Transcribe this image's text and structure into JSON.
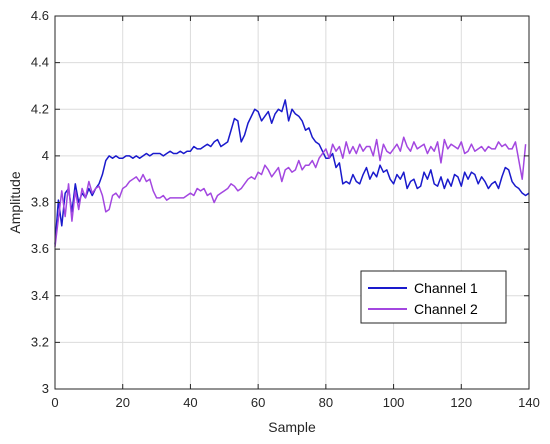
{
  "chart_data": {
    "type": "line",
    "xlabel": "Sample",
    "ylabel": "Amplitude",
    "xlim": [
      0,
      140
    ],
    "ylim": [
      3,
      4.6
    ],
    "xticks": [
      0,
      20,
      40,
      60,
      80,
      100,
      120,
      140
    ],
    "yticks": [
      3,
      3.2,
      3.4,
      3.6,
      3.8,
      4,
      4.2,
      4.4,
      4.6
    ],
    "xtick_labels": [
      "0",
      "20",
      "40",
      "60",
      "80",
      "100",
      "120",
      "140"
    ],
    "ytick_labels": [
      "3",
      "3.2",
      "3.4",
      "3.6",
      "3.8",
      "4",
      "4.2",
      "4.4",
      "4.6"
    ],
    "grid": true,
    "legend_position": "bottom-right",
    "series": [
      {
        "name": "Channel 1",
        "color": "#1a1acc",
        "values": [
          3.62,
          3.81,
          3.7,
          3.84,
          3.86,
          3.76,
          3.88,
          3.8,
          3.84,
          3.82,
          3.86,
          3.83,
          3.86,
          3.88,
          3.92,
          3.98,
          4.0,
          3.99,
          4.0,
          3.99,
          3.99,
          4.0,
          4.0,
          3.99,
          4.0,
          3.99,
          4.0,
          4.01,
          4.0,
          4.01,
          4.01,
          4.01,
          4.0,
          4.01,
          4.02,
          4.01,
          4.01,
          4.02,
          4.01,
          4.02,
          4.02,
          4.04,
          4.03,
          4.03,
          4.04,
          4.05,
          4.04,
          4.06,
          4.07,
          4.04,
          4.05,
          4.06,
          4.11,
          4.16,
          4.15,
          4.06,
          4.09,
          4.14,
          4.17,
          4.2,
          4.19,
          4.15,
          4.17,
          4.19,
          4.14,
          4.18,
          4.2,
          4.19,
          4.24,
          4.15,
          4.2,
          4.18,
          4.17,
          4.15,
          4.11,
          4.12,
          4.08,
          4.06,
          4.05,
          4.02,
          3.99,
          3.99,
          4.01,
          3.95,
          3.97,
          3.88,
          3.89,
          3.88,
          3.92,
          3.89,
          3.88,
          3.92,
          3.95,
          3.9,
          3.93,
          3.91,
          3.96,
          3.93,
          3.94,
          3.9,
          3.88,
          3.92,
          3.9,
          3.93,
          3.86,
          3.89,
          3.9,
          3.86,
          3.87,
          3.93,
          3.9,
          3.94,
          3.88,
          3.87,
          3.91,
          3.86,
          3.9,
          3.87,
          3.92,
          3.91,
          3.87,
          3.93,
          3.9,
          3.93,
          3.92,
          3.88,
          3.91,
          3.89,
          3.86,
          3.88,
          3.89,
          3.86,
          3.91,
          3.95,
          3.94,
          3.89,
          3.87,
          3.86,
          3.84,
          3.83,
          3.84
        ]
      },
      {
        "name": "Channel 2",
        "color": "#a347e0",
        "values": [
          3.61,
          3.73,
          3.85,
          3.74,
          3.88,
          3.72,
          3.85,
          3.77,
          3.86,
          3.82,
          3.89,
          3.84,
          3.86,
          3.87,
          3.83,
          3.76,
          3.77,
          3.83,
          3.84,
          3.82,
          3.86,
          3.87,
          3.89,
          3.9,
          3.91,
          3.89,
          3.92,
          3.89,
          3.9,
          3.85,
          3.82,
          3.82,
          3.83,
          3.81,
          3.82,
          3.82,
          3.82,
          3.82,
          3.82,
          3.83,
          3.84,
          3.83,
          3.86,
          3.85,
          3.86,
          3.83,
          3.84,
          3.8,
          3.83,
          3.84,
          3.85,
          3.86,
          3.88,
          3.87,
          3.85,
          3.86,
          3.88,
          3.9,
          3.91,
          3.9,
          3.93,
          3.92,
          3.96,
          3.94,
          3.91,
          3.93,
          3.95,
          3.89,
          3.94,
          3.95,
          3.93,
          3.94,
          3.98,
          3.94,
          3.96,
          3.96,
          3.98,
          3.95,
          3.99,
          4.01,
          4.03,
          3.99,
          4.05,
          4.02,
          4.04,
          3.99,
          4.06,
          4.01,
          4.04,
          4.01,
          4.05,
          4.02,
          4.04,
          4.04,
          4.0,
          4.07,
          3.98,
          4.05,
          4.02,
          4.01,
          4.03,
          4.05,
          4.02,
          4.08,
          4.04,
          4.02,
          4.06,
          4.03,
          4.04,
          4.05,
          4.01,
          4.04,
          4.02,
          4.06,
          3.97,
          4.07,
          4.03,
          4.05,
          4.04,
          4.03,
          4.06,
          4.01,
          4.02,
          4.05,
          4.02,
          4.03,
          4.04,
          4.02,
          4.04,
          4.03,
          4.03,
          4.06,
          4.04,
          4.05,
          4.03,
          4.03,
          4.06,
          3.98,
          3.9,
          4.05
        ]
      }
    ]
  }
}
